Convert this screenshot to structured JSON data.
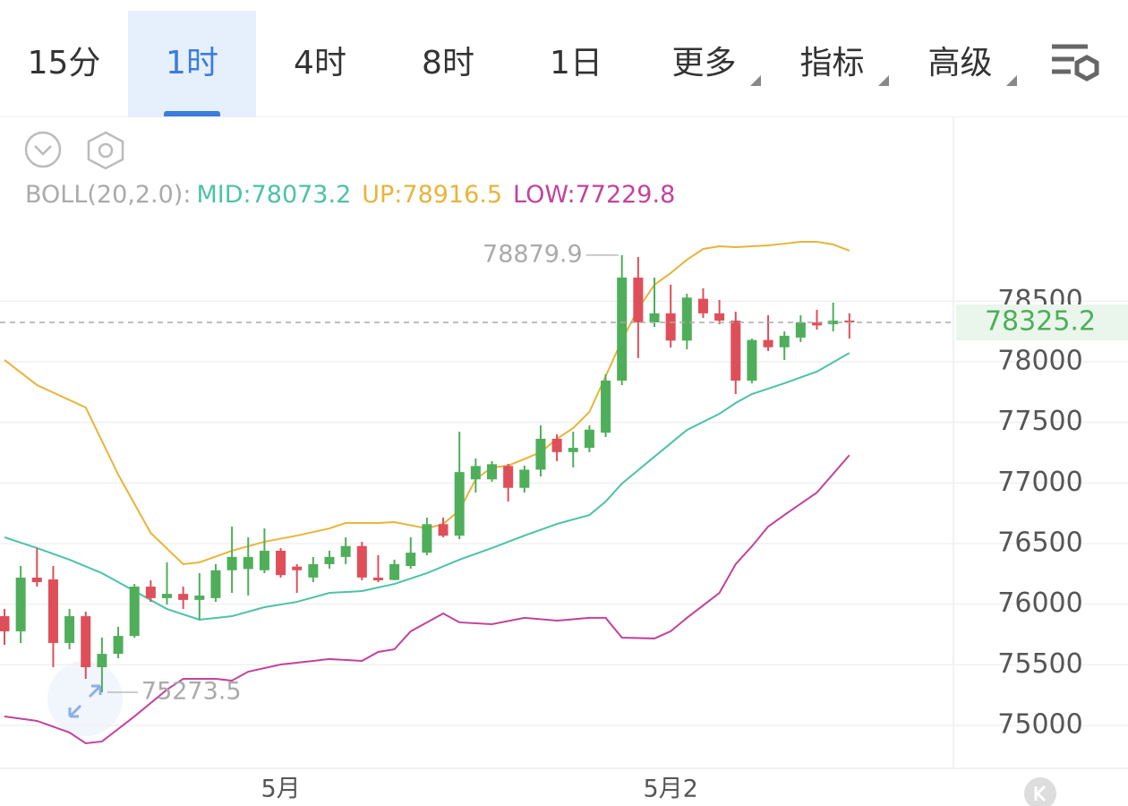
{
  "tabs": [
    {
      "label": "15分"
    },
    {
      "label": "1时"
    },
    {
      "label": "4时"
    },
    {
      "label": "8时"
    },
    {
      "label": "1日"
    },
    {
      "label": "更多",
      "dropdown": true
    },
    {
      "label": "指标",
      "dropdown": true
    },
    {
      "label": "高级",
      "dropdown": true
    }
  ],
  "active_tab": 1,
  "chart_data": {
    "type": "candlestick",
    "indicator": "BOLL(20,2.0):",
    "categories": [
      null,
      null,
      null,
      null,
      null,
      null,
      null,
      null,
      null,
      null,
      null,
      null,
      null,
      null,
      null,
      null,
      null,
      "5月",
      null,
      null,
      null,
      null,
      null,
      null,
      null,
      null,
      null,
      null,
      null,
      null,
      null,
      null,
      null,
      null,
      null,
      null,
      null,
      null,
      null,
      null,
      null,
      "5月2",
      null,
      null,
      null,
      null,
      null,
      null,
      null,
      null,
      null,
      null,
      null
    ],
    "open": [
      75901,
      75776,
      76219,
      76204,
      75680,
      75901,
      75480,
      75590,
      75738,
      76145,
      76050,
      76085,
      76035,
      76050,
      76280,
      76290,
      76280,
      76441,
      76310,
      76220,
      76330,
      76390,
      76480,
      76219,
      76200,
      76315,
      76425,
      76660,
      76565,
      77030,
      77030,
      77140,
      76960,
      77110,
      77365,
      77255,
      77290,
      77415,
      77845,
      78695,
      78325,
      78400,
      78175,
      78520,
      78400,
      78340,
      77845,
      78180,
      78120,
      78200,
      78325,
      78310,
      78340
    ],
    "high": [
      75960,
      76315,
      76463,
      76315,
      75960,
      75938,
      75724,
      75813,
      76167,
      76197,
      76345,
      76145,
      76256,
      76330,
      76640,
      76552,
      76625,
      76463,
      76330,
      76389,
      76441,
      76552,
      76515,
      76404,
      76367,
      76552,
      76714,
      76714,
      77424,
      77202,
      77180,
      77158,
      77143,
      77475,
      77401,
      77424,
      77475,
      77897,
      78879.9,
      78865,
      78695,
      78636,
      78562,
      78606,
      78510,
      78414,
      78192,
      78384,
      78251,
      78384,
      78429,
      78488,
      78400
    ],
    "low": [
      75665,
      75680,
      76145,
      75480,
      75628,
      75384,
      75273.5,
      75554,
      75724,
      76019,
      75997,
      75960,
      75872,
      76019,
      76093,
      76071,
      76256,
      76219,
      76093,
      76182,
      76293,
      76330,
      76197,
      76182,
      76197,
      76293,
      76404,
      76552,
      76537,
      76921,
      77010,
      76847,
      76921,
      77054,
      77180,
      77128,
      77254,
      77379,
      77808,
      78030,
      78288,
      78118,
      78103,
      78362,
      78310,
      77734,
      77823,
      78089,
      78015,
      78163,
      78266,
      78251,
      78192
    ],
    "close": [
      75776,
      76219,
      76182,
      75680,
      75901,
      75480,
      75590,
      75738,
      76145,
      76050,
      76085,
      76035,
      76071,
      76280,
      76390,
      76390,
      76441,
      76240,
      76280,
      76330,
      76390,
      76480,
      76220,
      76197,
      76330,
      76425,
      76660,
      76565,
      77090,
      77140,
      77155,
      76960,
      77110,
      77365,
      77255,
      77290,
      77440,
      77845,
      78695,
      78325,
      78400,
      78175,
      78530,
      78400,
      78340,
      77845,
      78180,
      78120,
      78215,
      78325,
      78300,
      78340,
      78325.2
    ],
    "up_color": "#4fae5a",
    "down_color": "#de4f5a",
    "series": [
      {
        "name": "MID:",
        "color": "#4cc2a6",
        "x": [
          0,
          2,
          4,
          6,
          8,
          10,
          12,
          14,
          16,
          18,
          20,
          22,
          24,
          26,
          28,
          30,
          32,
          34,
          36,
          37,
          38,
          39,
          40,
          41,
          42,
          44,
          45,
          46,
          48,
          50,
          52
        ],
        "values": [
          76552,
          76463,
          76367,
          76256,
          76108,
          75960,
          75872,
          75901,
          75975,
          76019,
          76093,
          76108,
          76167,
          76256,
          76367,
          76463,
          76566,
          76662,
          76736,
          76847,
          76995,
          77106,
          77217,
          77327,
          77438,
          77571,
          77660,
          77734,
          77823,
          77919,
          78073.2
        ]
      },
      {
        "name": "UP:",
        "color": "#e8b43a",
        "x": [
          0,
          2,
          5,
          7,
          9,
          11,
          12,
          14,
          16,
          18,
          20,
          21,
          23,
          24,
          26,
          27,
          28,
          29,
          30,
          31,
          33,
          34,
          35,
          36,
          37,
          38,
          39,
          40,
          41,
          42,
          43,
          44,
          45,
          47,
          48,
          49,
          50,
          51,
          52
        ],
        "values": [
          78015,
          77808,
          77623,
          77069,
          76588,
          76330,
          76345,
          76441,
          76515,
          76566,
          76625,
          76670,
          76670,
          76677,
          76625,
          76662,
          76773,
          77032,
          77128,
          77143,
          77254,
          77364,
          77453,
          77586,
          77882,
          78177,
          78436,
          78636,
          78732,
          78842,
          78931,
          78953,
          78946,
          78961,
          78975,
          78990,
          78990,
          78968,
          78916.5
        ]
      },
      {
        "name": "LOW:",
        "color": "#c2439c",
        "x": [
          0,
          2,
          4,
          5,
          6,
          8,
          10,
          11,
          13,
          14,
          15,
          17,
          19,
          20,
          22,
          23,
          24,
          25,
          27,
          28,
          30,
          32,
          34,
          36,
          37,
          38,
          40,
          41,
          42,
          44,
          45,
          46,
          47,
          48,
          50,
          52
        ],
        "values": [
          75074,
          75037,
          74941,
          74852,
          74867,
          75074,
          75295,
          75384,
          75384,
          75369,
          75443,
          75502,
          75532,
          75547,
          75532,
          75606,
          75628,
          75776,
          75923,
          75850,
          75835,
          75887,
          75864,
          75887,
          75887,
          75724,
          75717,
          75776,
          75887,
          76093,
          76330,
          76478,
          76640,
          76736,
          76921,
          77229.8
        ]
      }
    ],
    "ylim": [
      74645,
      80010
    ],
    "yticks": [
      75000,
      75500,
      76000,
      76500,
      77000,
      77500,
      78000,
      78500
    ],
    "grid": true,
    "last_price": 78325.2,
    "annotations": [
      {
        "text": "78879.9",
        "index": 38,
        "value": 78879.9
      },
      {
        "text": "75273.5",
        "index": 6,
        "value": 75273.5
      }
    ]
  }
}
